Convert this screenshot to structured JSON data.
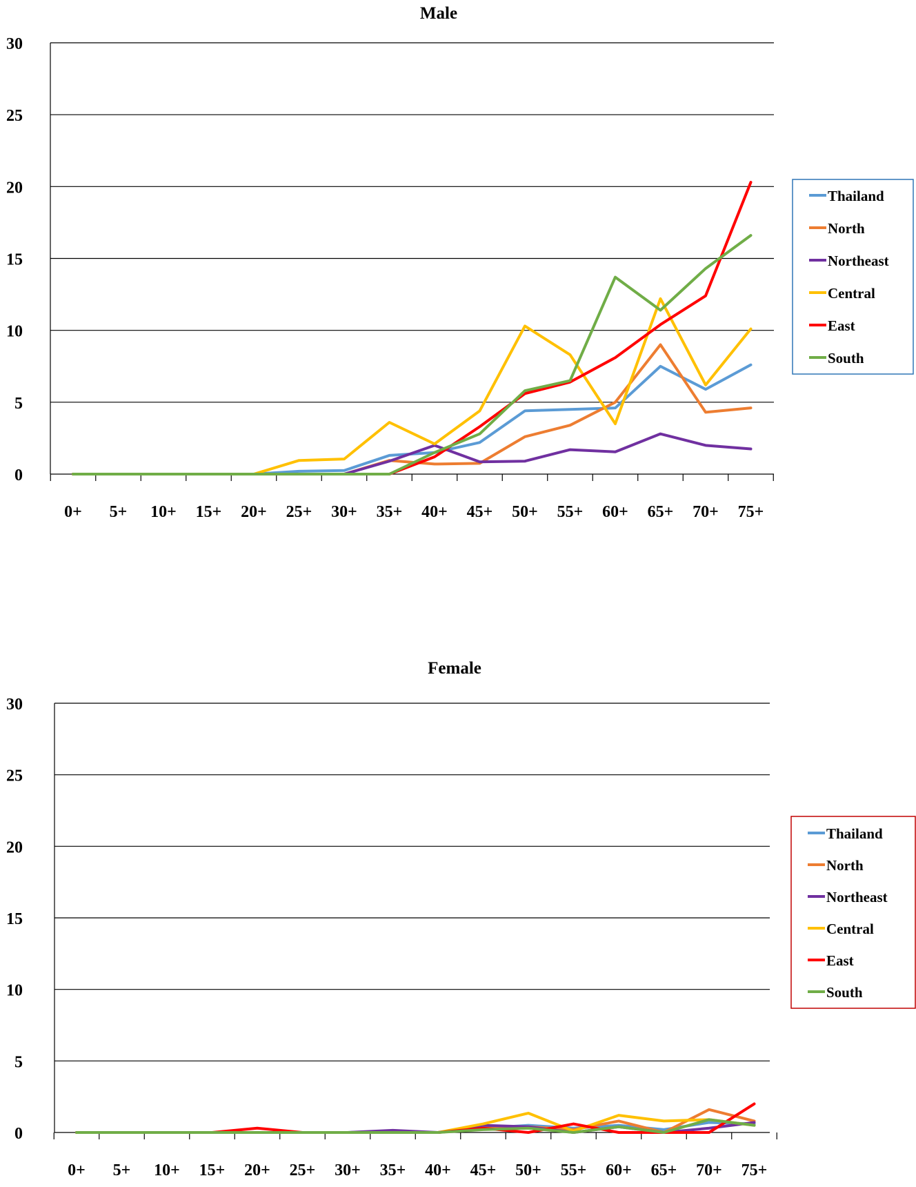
{
  "chart_data": [
    {
      "type": "line",
      "title": "Male",
      "xlabel": "",
      "ylabel": "",
      "ylim": [
        0,
        30
      ],
      "yticks": [
        0,
        5,
        10,
        15,
        20,
        25,
        30
      ],
      "grid": true,
      "legend_position": "right",
      "legend_border_color": "#2e75b6",
      "categories": [
        "0+",
        "5+",
        "10+",
        "15+",
        "20+",
        "25+",
        "30+",
        "35+",
        "40+",
        "45+",
        "50+",
        "55+",
        "60+",
        "65+",
        "70+",
        "75+"
      ],
      "series": [
        {
          "name": "Thailand",
          "color": "#5b9bd5",
          "values": [
            0,
            0,
            0,
            0,
            0,
            0.2,
            0.25,
            1.3,
            1.5,
            2.2,
            4.4,
            4.5,
            4.6,
            7.5,
            5.9,
            7.6
          ]
        },
        {
          "name": "North",
          "color": "#ed7d31",
          "values": [
            0,
            0,
            0,
            0,
            0,
            0,
            0,
            0.95,
            0.7,
            0.75,
            2.6,
            3.4,
            5.0,
            9.0,
            4.3,
            4.6
          ]
        },
        {
          "name": "Northeast",
          "color": "#7030a0",
          "values": [
            0,
            0,
            0,
            0,
            0,
            0,
            0,
            0.9,
            2.0,
            0.85,
            0.9,
            1.7,
            1.55,
            2.8,
            2.0,
            1.75
          ]
        },
        {
          "name": "Central",
          "color": "#ffc000",
          "values": [
            0,
            0,
            0,
            0,
            0,
            0.95,
            1.05,
            3.6,
            2.1,
            4.4,
            10.3,
            8.3,
            3.5,
            12.2,
            6.2,
            10.1
          ]
        },
        {
          "name": "East",
          "color": "#ff0000",
          "values": [
            0,
            0,
            0,
            0,
            0,
            0,
            0,
            0,
            1.2,
            3.3,
            5.6,
            6.4,
            8.1,
            10.4,
            12.4,
            20.3
          ]
        },
        {
          "name": "South",
          "color": "#70ad47",
          "values": [
            0,
            0,
            0,
            0,
            0,
            0,
            0,
            0,
            1.5,
            2.8,
            5.8,
            6.5,
            13.7,
            11.4,
            14.3,
            16.6
          ]
        }
      ]
    },
    {
      "type": "line",
      "title": "Female",
      "xlabel": "",
      "ylabel": "",
      "ylim": [
        0,
        30
      ],
      "yticks": [
        0,
        5,
        10,
        15,
        20,
        25,
        30
      ],
      "grid": true,
      "legend_position": "right",
      "legend_border_color": "#c00000",
      "categories": [
        "0+",
        "5+",
        "10+",
        "15+",
        "20+",
        "25+",
        "30+",
        "35+",
        "40+",
        "45+",
        "50+",
        "55+",
        "60+",
        "65+",
        "70+",
        "75+"
      ],
      "series": [
        {
          "name": "Thailand",
          "color": "#5b9bd5",
          "values": [
            0,
            0,
            0,
            0,
            0,
            0,
            0,
            0.05,
            0,
            0.3,
            0.5,
            0.3,
            0.5,
            0.2,
            0.7,
            0.6
          ]
        },
        {
          "name": "North",
          "color": "#ed7d31",
          "values": [
            0,
            0,
            0,
            0,
            0,
            0,
            0,
            0,
            0,
            0.3,
            0.4,
            0.2,
            0.8,
            0,
            1.6,
            0.8
          ]
        },
        {
          "name": "Northeast",
          "color": "#7030a0",
          "values": [
            0,
            0,
            0,
            0,
            0,
            0,
            0,
            0.15,
            0,
            0.5,
            0.4,
            0,
            0.4,
            0,
            0.3,
            0.7
          ]
        },
        {
          "name": "Central",
          "color": "#ffc000",
          "values": [
            0,
            0,
            0,
            0,
            0,
            0,
            0,
            0,
            0,
            0.6,
            1.35,
            0.1,
            1.2,
            0.8,
            0.9,
            0.5
          ]
        },
        {
          "name": "East",
          "color": "#ff0000",
          "values": [
            0,
            0,
            0,
            0,
            0.3,
            0,
            0,
            0,
            0,
            0.3,
            0,
            0.6,
            0,
            0,
            0,
            2.0
          ]
        },
        {
          "name": "South",
          "color": "#70ad47",
          "values": [
            0,
            0,
            0,
            0,
            0,
            0,
            0,
            0,
            0,
            0.2,
            0.3,
            0,
            0.4,
            0,
            0.9,
            0.5
          ]
        }
      ]
    }
  ]
}
